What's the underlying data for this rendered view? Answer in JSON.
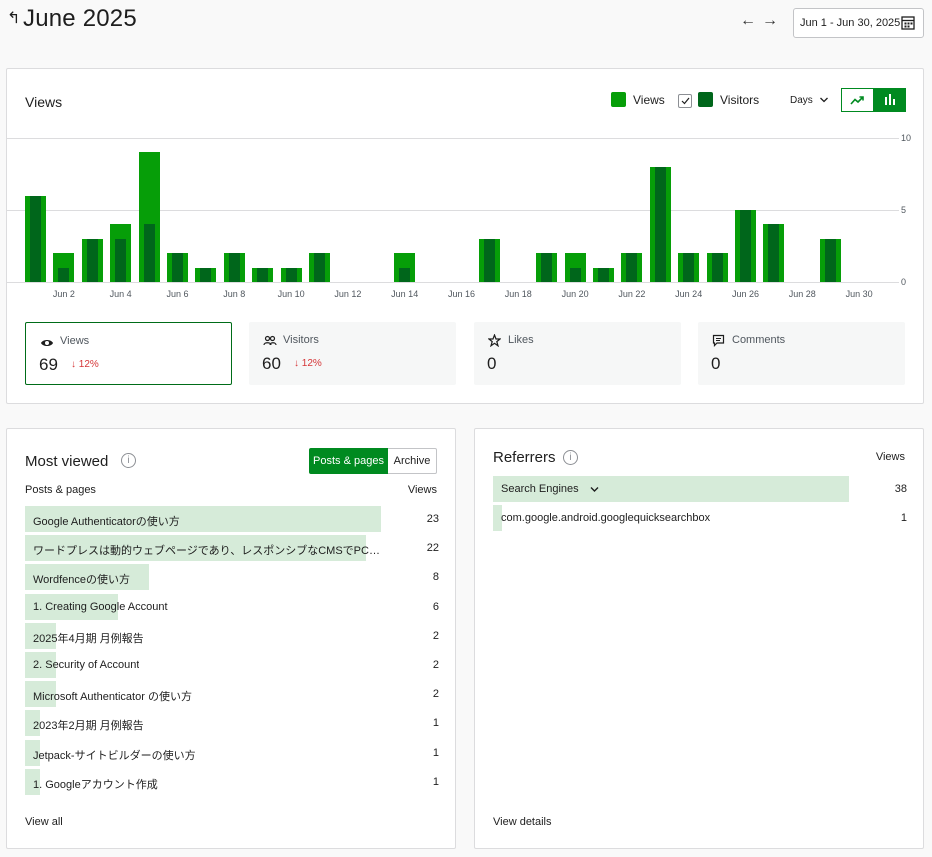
{
  "header": {
    "title": "June 2025",
    "date_range": "Jun 1 - Jun 30, 2025",
    "prev_arrow": "←",
    "next_arrow": "→"
  },
  "views_card": {
    "title": "Views",
    "legend": [
      {
        "label": "Views",
        "color": "#069e08"
      },
      {
        "label": "Visitors",
        "color": "#00661b",
        "checked": true
      }
    ],
    "interval": "Days",
    "chart_modes": [
      "line",
      "bar"
    ],
    "active_chart_mode": "bar"
  },
  "chart_data": {
    "type": "bar",
    "categories": [
      "Jun 1",
      "Jun 2",
      "Jun 3",
      "Jun 4",
      "Jun 5",
      "Jun 6",
      "Jun 7",
      "Jun 8",
      "Jun 9",
      "Jun 10",
      "Jun 11",
      "Jun 12",
      "Jun 13",
      "Jun 14",
      "Jun 15",
      "Jun 16",
      "Jun 17",
      "Jun 18",
      "Jun 19",
      "Jun 20",
      "Jun 21",
      "Jun 22",
      "Jun 23",
      "Jun 24",
      "Jun 25",
      "Jun 26",
      "Jun 27",
      "Jun 28",
      "Jun 29",
      "Jun 30"
    ],
    "x_tick_labels": [
      "Jun 2",
      "Jun 4",
      "Jun 6",
      "Jun 8",
      "Jun 10",
      "Jun 12",
      "Jun 14",
      "Jun 16",
      "Jun 18",
      "Jun 20",
      "Jun 22",
      "Jun 24",
      "Jun 26",
      "Jun 28",
      "Jun 30"
    ],
    "series": [
      {
        "name": "Views",
        "color": "#069e08",
        "values": [
          6,
          2,
          3,
          4,
          9,
          2,
          1,
          2,
          1,
          1,
          2,
          0,
          0,
          2,
          0,
          0,
          3,
          0,
          2,
          2,
          1,
          2,
          8,
          2,
          2,
          5,
          4,
          0,
          3,
          0
        ]
      },
      {
        "name": "Visitors",
        "color": "#00661b",
        "values": [
          6,
          1,
          3,
          3,
          4,
          2,
          1,
          2,
          1,
          1,
          2,
          0,
          0,
          1,
          0,
          0,
          3,
          0,
          2,
          1,
          1,
          2,
          8,
          2,
          2,
          5,
          4,
          0,
          3,
          0
        ]
      }
    ],
    "y_ticks": [
      0,
      5,
      10
    ],
    "ylim": [
      0,
      10
    ],
    "grid": true
  },
  "stats": [
    {
      "label": "Views",
      "value": "69",
      "change": "↓ 12%",
      "icon": "eye-icon",
      "active": true
    },
    {
      "label": "Visitors",
      "value": "60",
      "change": "↓ 12%",
      "icon": "people-icon",
      "active": false
    },
    {
      "label": "Likes",
      "value": "0",
      "change": "",
      "icon": "star-icon",
      "active": false
    },
    {
      "label": "Comments",
      "value": "0",
      "change": "",
      "icon": "comment-icon",
      "active": false
    }
  ],
  "most_viewed": {
    "title": "Most viewed",
    "tabs": [
      "Posts & pages",
      "Archive"
    ],
    "active_tab": "Posts & pages",
    "col_label": "Posts & pages",
    "col_value": "Views",
    "rows": [
      {
        "label": "Google Authenticatorの使い方",
        "value": 23
      },
      {
        "label": "ワードプレスは動的ウェブページであり、レスポンシブなCMSでPC・ス...",
        "value": 22
      },
      {
        "label": "Wordfenceの使い方",
        "value": 8
      },
      {
        "label": "1. Creating Google Account",
        "value": 6
      },
      {
        "label": "2025年4月期 月例報告",
        "value": 2
      },
      {
        "label": "2. Security of Account",
        "value": 2
      },
      {
        "label": "Microsoft Authenticator の使い方",
        "value": 2
      },
      {
        "label": "2023年2月期 月例報告",
        "value": 1
      },
      {
        "label": "Jetpack-サイトビルダーの使い方",
        "value": 1
      },
      {
        "label": "1. Googleアカウント作成",
        "value": 1
      }
    ],
    "footer": "View all"
  },
  "referrers": {
    "title": "Referrers",
    "col_value": "Views",
    "rows": [
      {
        "label": "Search Engines",
        "value": 38,
        "expandable": true
      },
      {
        "label": "com.google.android.googlequicksearchbox",
        "value": 1,
        "expandable": false
      }
    ],
    "footer": "View details"
  }
}
